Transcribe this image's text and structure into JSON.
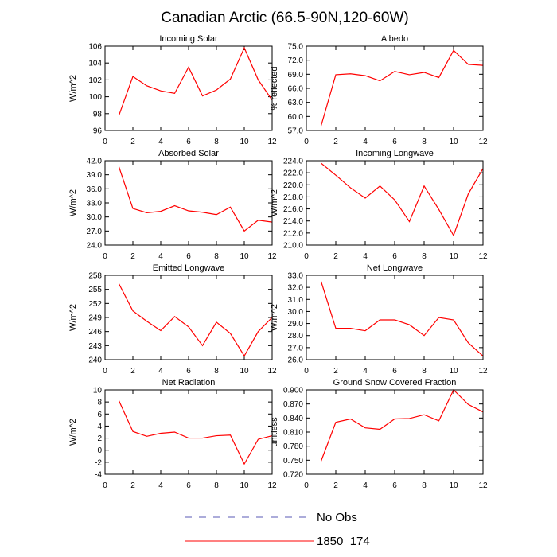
{
  "title": "Canadian Arctic (66.5-90N,120-60W)",
  "legend": [
    {
      "name": "No Obs",
      "color": "#5a5ab4",
      "style": "dashed"
    }
  ],
  "chart_data": [
    {
      "type": "line",
      "title": "Incoming Solar",
      "y_label": "W/m^2",
      "x": [
        1,
        2,
        3,
        4,
        5,
        6,
        7,
        8,
        9,
        10,
        11,
        12
      ],
      "xlim": [
        0,
        12
      ],
      "xticks": [
        0,
        2,
        4,
        6,
        8,
        10,
        12
      ],
      "ylim": [
        96,
        106
      ],
      "yticks": [
        96,
        98,
        100,
        102,
        104,
        106
      ],
      "series": [
        {
          "name": "1850_174",
          "color": "#ff0000",
          "values": [
            97.8,
            102.4,
            101.3,
            100.7,
            100.4,
            103.5,
            100.1,
            100.8,
            102.1,
            105.8,
            102.0,
            99.6
          ]
        }
      ]
    },
    {
      "type": "line",
      "title": "Albedo",
      "y_label": "% reflected",
      "x": [
        1,
        2,
        3,
        4,
        5,
        6,
        7,
        8,
        9,
        10,
        11,
        12
      ],
      "xlim": [
        0,
        12
      ],
      "xticks": [
        0,
        2,
        4,
        6,
        8,
        10,
        12
      ],
      "ylim": [
        57,
        75
      ],
      "yticks": [
        {
          "value": 57,
          "label": "57.0"
        },
        {
          "value": 60,
          "label": "60.0"
        },
        {
          "value": 63,
          "label": "63.0"
        },
        {
          "value": 66,
          "label": "66.0"
        },
        {
          "value": 69,
          "label": "69.0"
        },
        {
          "value": 72,
          "label": "72.0"
        },
        {
          "value": 75,
          "label": "75.0"
        }
      ],
      "series": [
        {
          "name": "1850_174",
          "color": "#ff0000",
          "values": [
            58.0,
            68.9,
            69.1,
            68.7,
            67.6,
            69.6,
            68.9,
            69.4,
            68.3,
            74.1,
            71.1,
            70.9
          ]
        }
      ]
    },
    {
      "type": "line",
      "title": "Absorbed Solar",
      "y_label": "W/m^2",
      "x": [
        1,
        2,
        3,
        4,
        5,
        6,
        7,
        8,
        9,
        10,
        11,
        12
      ],
      "xlim": [
        0,
        12
      ],
      "xticks": [
        0,
        2,
        4,
        6,
        8,
        10,
        12
      ],
      "ylim": [
        24,
        42
      ],
      "yticks": [
        {
          "value": 24,
          "label": "24.0"
        },
        {
          "value": 27,
          "label": "27.0"
        },
        {
          "value": 30,
          "label": "30.0"
        },
        {
          "value": 33,
          "label": "33.0"
        },
        {
          "value": 36,
          "label": "36.0"
        },
        {
          "value": 39,
          "label": "39.0"
        },
        {
          "value": 42,
          "label": "42.0"
        }
      ],
      "series": [
        {
          "name": "1850_174",
          "color": "#ff0000",
          "values": [
            40.7,
            31.8,
            30.9,
            31.2,
            32.4,
            31.3,
            31.0,
            30.5,
            32.1,
            27.0,
            29.3,
            28.9
          ]
        }
      ]
    },
    {
      "type": "line",
      "title": "Incoming Longwave",
      "y_label": "W/m^2",
      "x": [
        1,
        2,
        3,
        4,
        5,
        6,
        7,
        8,
        9,
        10,
        11,
        12
      ],
      "xlim": [
        0,
        12
      ],
      "xticks": [
        0,
        2,
        4,
        6,
        8,
        10,
        12
      ],
      "ylim": [
        210,
        224
      ],
      "yticks": [
        {
          "value": 210,
          "label": "210.0"
        },
        {
          "value": 212,
          "label": "212.0"
        },
        {
          "value": 214,
          "label": "214.0"
        },
        {
          "value": 216,
          "label": "216.0"
        },
        {
          "value": 218,
          "label": "218.0"
        },
        {
          "value": 220,
          "label": "220.0"
        },
        {
          "value": 222,
          "label": "222.0"
        },
        {
          "value": 224,
          "label": "224.0"
        }
      ],
      "series": [
        {
          "name": "1850_174",
          "color": "#ff0000",
          "values": [
            223.6,
            221.6,
            219.5,
            217.8,
            219.8,
            217.5,
            213.9,
            219.8,
            215.9,
            211.6,
            218.5,
            222.7
          ]
        }
      ]
    },
    {
      "type": "line",
      "title": "Emitted Longwave",
      "y_label": "W/m^2",
      "x": [
        1,
        2,
        3,
        4,
        5,
        6,
        7,
        8,
        9,
        10,
        11,
        12
      ],
      "xlim": [
        0,
        12
      ],
      "xticks": [
        0,
        2,
        4,
        6,
        8,
        10,
        12
      ],
      "ylim": [
        240,
        258
      ],
      "yticks": [
        240,
        243,
        246,
        249,
        252,
        255,
        258
      ],
      "series": [
        {
          "name": "1850_174",
          "color": "#ff0000",
          "values": [
            256.2,
            250.4,
            248.2,
            246.2,
            249.2,
            247.0,
            243.0,
            248.0,
            245.6,
            240.8,
            246.0,
            249.0
          ]
        }
      ]
    },
    {
      "type": "line",
      "title": "Net Longwave",
      "y_label": "W/m^2",
      "x": [
        1,
        2,
        3,
        4,
        5,
        6,
        7,
        8,
        9,
        10,
        11,
        12
      ],
      "xlim": [
        0,
        12
      ],
      "xticks": [
        0,
        2,
        4,
        6,
        8,
        10,
        12
      ],
      "ylim": [
        26,
        33
      ],
      "yticks": [
        {
          "value": 26,
          "label": "26.0"
        },
        {
          "value": 27,
          "label": "27.0"
        },
        {
          "value": 28,
          "label": "28.0"
        },
        {
          "value": 29,
          "label": "29.0"
        },
        {
          "value": 30,
          "label": "30.0"
        },
        {
          "value": 31,
          "label": "31.0"
        },
        {
          "value": 32,
          "label": "32.0"
        },
        {
          "value": 33,
          "label": "33.0"
        }
      ],
      "series": [
        {
          "name": "1850_174",
          "color": "#ff0000",
          "values": [
            32.5,
            28.6,
            28.6,
            28.4,
            29.3,
            29.3,
            28.9,
            28.0,
            29.5,
            29.3,
            27.4,
            26.3
          ]
        }
      ]
    },
    {
      "type": "line",
      "title": "Net Radiation",
      "y_label": "W/m^2",
      "x": [
        1,
        2,
        3,
        4,
        5,
        6,
        7,
        8,
        9,
        10,
        11,
        12
      ],
      "xlim": [
        0,
        12
      ],
      "xticks": [
        0,
        2,
        4,
        6,
        8,
        10,
        12
      ],
      "ylim": [
        -4,
        10
      ],
      "yticks": [
        -4,
        -2,
        0,
        2,
        4,
        6,
        8,
        10
      ],
      "series": [
        {
          "name": "1850_174",
          "color": "#ff0000",
          "values": [
            8.2,
            3.1,
            2.3,
            2.8,
            3.0,
            2.0,
            2.0,
            2.4,
            2.5,
            -2.3,
            1.8,
            2.4
          ]
        }
      ]
    },
    {
      "type": "line",
      "title": "Ground Snow Covered Fraction",
      "y_label": "unitless",
      "x": [
        1,
        2,
        3,
        4,
        5,
        6,
        7,
        8,
        9,
        10,
        11,
        12
      ],
      "xlim": [
        0,
        12
      ],
      "xticks": [
        0,
        2,
        4,
        6,
        8,
        10,
        12
      ],
      "ylim": [
        0.72,
        0.9
      ],
      "yticks": [
        {
          "value": 0.72,
          "label": "0.720"
        },
        {
          "value": 0.75,
          "label": "0.750"
        },
        {
          "value": 0.78,
          "label": "0.780"
        },
        {
          "value": 0.81,
          "label": "0.810"
        },
        {
          "value": 0.84,
          "label": "0.840"
        },
        {
          "value": 0.87,
          "label": "0.870"
        },
        {
          "value": 0.9,
          "label": "0.900"
        }
      ],
      "series": [
        {
          "name": "1850_174",
          "color": "#ff0000",
          "values": [
            0.748,
            0.831,
            0.838,
            0.819,
            0.816,
            0.838,
            0.839,
            0.847,
            0.834,
            0.9,
            0.869,
            0.853
          ]
        }
      ]
    }
  ]
}
